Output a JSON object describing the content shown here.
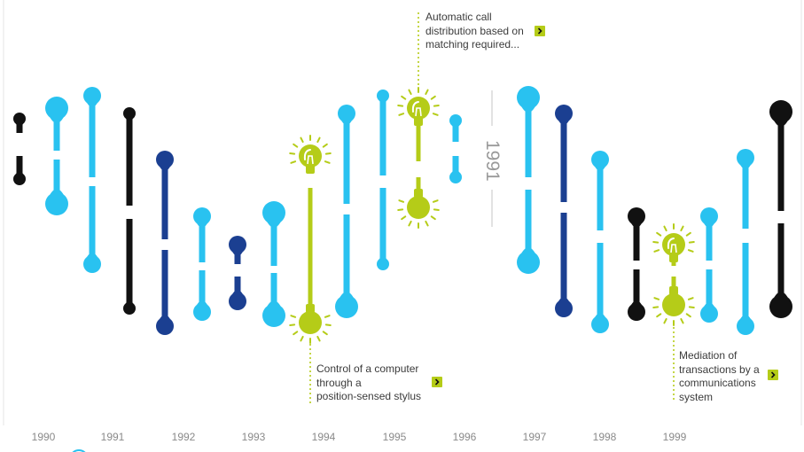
{
  "colors": {
    "light_blue": "#29c2f0",
    "dark_blue": "#1b3f91",
    "black": "#111111",
    "lime": "#b5cc18",
    "year_text": "#8a8a8a",
    "annotation_text": "#3b3b3b"
  },
  "annotations": [
    {
      "lines": [
        "Automatic call",
        "distribution based on",
        "matching required..."
      ],
      "arrow_icon": "chevron-right-icon"
    },
    {
      "lines": [
        "Control of a computer",
        "through a",
        "position-sensed stylus"
      ],
      "arrow_icon": "chevron-right-icon"
    },
    {
      "lines": [
        "Mediation of",
        "transactions by a",
        "communications",
        "system"
      ],
      "arrow_icon": "chevron-right-icon"
    }
  ],
  "center_year": "1991",
  "years": [
    "1990",
    "1991",
    "1992",
    "1993",
    "1994",
    "1995",
    "1996",
    "1997",
    "1998",
    "1999"
  ],
  "strands": [
    {
      "color": "black",
      "top_size": "small",
      "bottom_size": "small"
    },
    {
      "color": "light_blue",
      "top_size": "large",
      "bottom_size": "large"
    },
    {
      "color": "light_blue",
      "top_size": "medium",
      "bottom_size": "medium"
    },
    {
      "color": "black",
      "top_size": "small",
      "bottom_size": "small"
    },
    {
      "color": "dark_blue",
      "top_size": "medium",
      "bottom_size": "medium"
    },
    {
      "color": "light_blue",
      "top_size": "medium",
      "bottom_size": "medium"
    },
    {
      "color": "dark_blue",
      "top_size": "medium",
      "bottom_size": "medium"
    },
    {
      "color": "light_blue",
      "top_size": "large",
      "bottom_size": "large"
    },
    {
      "color": "lime",
      "top_size": "bulb",
      "bottom_size": "bulb"
    },
    {
      "color": "light_blue",
      "top_size": "medium",
      "bottom_size": "large"
    },
    {
      "color": "light_blue",
      "top_size": "small",
      "bottom_size": "small"
    },
    {
      "color": "lime",
      "top_size": "bulb",
      "bottom_size": "bulb"
    },
    {
      "color": "light_blue",
      "top_size": "small",
      "bottom_size": "small"
    },
    {
      "color": "light_blue",
      "top_size": "large",
      "bottom_size": "large"
    },
    {
      "color": "dark_blue",
      "top_size": "medium",
      "bottom_size": "medium"
    },
    {
      "color": "light_blue",
      "top_size": "medium",
      "bottom_size": "medium"
    },
    {
      "color": "black",
      "top_size": "medium",
      "bottom_size": "medium"
    },
    {
      "color": "lime",
      "top_size": "bulb",
      "bottom_size": "bulb"
    },
    {
      "color": "light_blue",
      "top_size": "medium",
      "bottom_size": "medium"
    },
    {
      "color": "light_blue",
      "top_size": "medium",
      "bottom_size": "medium"
    },
    {
      "color": "black",
      "top_size": "large",
      "bottom_size": "large"
    }
  ]
}
